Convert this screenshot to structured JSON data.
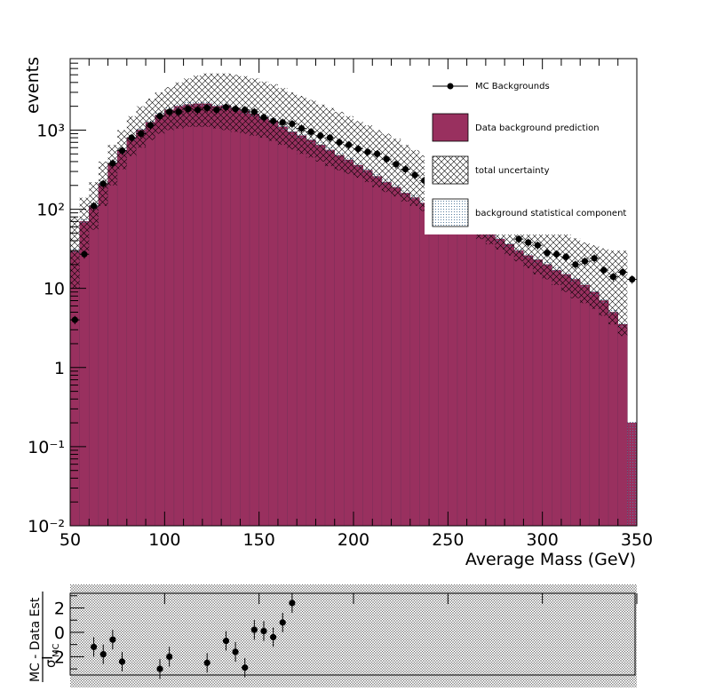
{
  "chart_data": [
    {
      "type": "bar",
      "xlabel": "Average Mass (GeV)",
      "ylabel": "events",
      "log_y": true,
      "xlim": [
        50,
        350
      ],
      "ylim": [
        0.01,
        8000
      ],
      "x_ticks": [
        "50",
        "100",
        "150",
        "200",
        "250",
        "300",
        "350"
      ],
      "y_tick_labels": {
        "1e-2": "10⁻²",
        "1e-1": "10⁻¹",
        "1": "1",
        "10": "10",
        "1e2": "10²",
        "1e3": "10³"
      },
      "legend_placement": "top-right",
      "legend": [
        {
          "key": "mc",
          "label": "MC Backgrounds"
        },
        {
          "key": "pred",
          "label": "Data background prediction"
        },
        {
          "key": "unc",
          "label": "total uncertainty"
        },
        {
          "key": "stat",
          "label": "background statistical component"
        }
      ],
      "bin_width": 5,
      "bin_centers": [
        52.5,
        57.5,
        62.5,
        67.5,
        72.5,
        77.5,
        82.5,
        87.5,
        92.5,
        97.5,
        102.5,
        107.5,
        112.5,
        117.5,
        122.5,
        127.5,
        132.5,
        137.5,
        142.5,
        147.5,
        152.5,
        157.5,
        162.5,
        167.5,
        172.5,
        177.5,
        182.5,
        187.5,
        192.5,
        197.5,
        202.5,
        207.5,
        212.5,
        217.5,
        222.5,
        227.5,
        232.5,
        237.5,
        242.5,
        247.5,
        252.5,
        257.5,
        262.5,
        267.5,
        272.5,
        277.5,
        282.5,
        287.5,
        292.5,
        297.5,
        302.5,
        307.5,
        312.5,
        317.5,
        322.5,
        327.5,
        332.5,
        337.5,
        342.5,
        347.5
      ],
      "series": [
        {
          "name": "Data background prediction",
          "kind": "histogram",
          "values": [
            30,
            70,
            110,
            210,
            380,
            550,
            800,
            1000,
            1250,
            1550,
            1800,
            2000,
            2100,
            2150,
            2150,
            2000,
            2050,
            1900,
            1750,
            1600,
            1450,
            1300,
            1100,
            950,
            850,
            750,
            650,
            560,
            480,
            420,
            360,
            310,
            260,
            220,
            190,
            160,
            140,
            120,
            110,
            95,
            85,
            75,
            65,
            55,
            48,
            42,
            36,
            30,
            26,
            23,
            20,
            17,
            15,
            13,
            11,
            9,
            7,
            5,
            3.5,
            0.2
          ]
        },
        {
          "name": "total uncertainty",
          "kind": "band",
          "low": [
            10,
            30,
            55,
            110,
            200,
            320,
            470,
            600,
            750,
            900,
            1000,
            1050,
            1100,
            1100,
            1100,
            1050,
            1000,
            950,
            900,
            850,
            800,
            730,
            650,
            570,
            500,
            450,
            400,
            350,
            310,
            280,
            250,
            220,
            190,
            165,
            145,
            125,
            110,
            95,
            85,
            75,
            65,
            55,
            48,
            42,
            36,
            31,
            26,
            22,
            18,
            15,
            13,
            11,
            9,
            7.5,
            6.5,
            5.5,
            4.5,
            3.5,
            2.5,
            0.01
          ],
          "high": [
            80,
            140,
            220,
            400,
            650,
            1000,
            1500,
            2000,
            2500,
            3000,
            3500,
            4000,
            4500,
            4900,
            5200,
            5200,
            5200,
            5000,
            4800,
            4500,
            4100,
            3800,
            3400,
            3000,
            2700,
            2400,
            2100,
            1900,
            1700,
            1500,
            1300,
            1150,
            1000,
            900,
            780,
            650,
            560,
            480,
            400,
            340,
            290,
            250,
            220,
            190,
            165,
            140,
            120,
            105,
            90,
            75,
            65,
            58,
            50,
            43,
            38,
            35,
            32,
            30,
            30,
            0.01
          ]
        },
        {
          "name": "MC Backgrounds",
          "kind": "points",
          "values": [
            4,
            27,
            110,
            210,
            380,
            550,
            800,
            900,
            1150,
            1500,
            1700,
            1700,
            1850,
            1800,
            1900,
            1800,
            1950,
            1850,
            1800,
            1700,
            1450,
            1300,
            1250,
            1200,
            1050,
            950,
            850,
            800,
            700,
            650,
            580,
            530,
            500,
            430,
            370,
            320,
            270,
            230,
            190,
            165,
            null,
            null,
            null,
            null,
            null,
            null,
            null,
            42,
            38,
            35,
            28,
            27,
            25,
            20,
            22,
            24,
            17,
            14,
            16,
            13
          ],
          "errors_rel": 0.12
        }
      ]
    },
    {
      "type": "scatter",
      "ylabel": "MC - Data Est",
      "ylabel_denominator": "σ",
      "ylabel_denominator_sub": "MC",
      "xlim": [
        50,
        350
      ],
      "ylim": [
        -3.5,
        3.2
      ],
      "y_ticks": [
        "2",
        "0",
        "−2"
      ],
      "points": [
        {
          "x": 62.5,
          "y": -1.2,
          "err": 0.8
        },
        {
          "x": 67.5,
          "y": -1.8,
          "err": 0.8
        },
        {
          "x": 72.5,
          "y": -0.6,
          "err": 0.8
        },
        {
          "x": 77.5,
          "y": -2.4,
          "err": 0.8
        },
        {
          "x": 97.5,
          "y": -3.0,
          "err": 0.8
        },
        {
          "x": 102.5,
          "y": -2.0,
          "err": 0.8
        },
        {
          "x": 122.5,
          "y": -2.5,
          "err": 0.8
        },
        {
          "x": 132.5,
          "y": -0.7,
          "err": 0.8
        },
        {
          "x": 137.5,
          "y": -1.6,
          "err": 0.8
        },
        {
          "x": 142.5,
          "y": -2.9,
          "err": 0.8
        },
        {
          "x": 147.5,
          "y": 0.2,
          "err": 0.8
        },
        {
          "x": 152.5,
          "y": 0.1,
          "err": 0.8
        },
        {
          "x": 157.5,
          "y": -0.4,
          "err": 0.8
        },
        {
          "x": 162.5,
          "y": 0.8,
          "err": 0.8
        },
        {
          "x": 167.5,
          "y": 2.4,
          "err": 0.8
        }
      ]
    }
  ],
  "colors": {
    "prediction_fill": "#99305f",
    "prediction_border": "#7a2f58",
    "markers": "#000000",
    "uncertainty_hatch": "#000000",
    "stat_hatch": "#6a8aaa"
  }
}
